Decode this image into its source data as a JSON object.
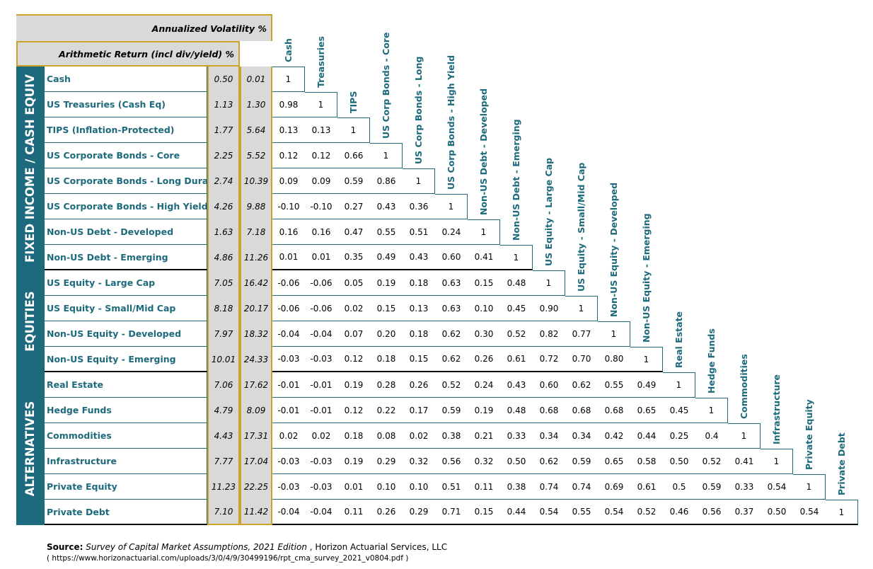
{
  "header": {
    "volatility_label": "Annualized Volatility %",
    "return_label": "Arithmetic Return (incl div/yield) %"
  },
  "groups": [
    {
      "label": "FIXED INCOME / CASH EQUIV",
      "start": 0,
      "count": 8
    },
    {
      "label": "EQUITIES",
      "start": 8,
      "count": 4
    },
    {
      "label": "ALTERNATIVES",
      "start": 12,
      "count": 6
    }
  ],
  "column_labels": [
    "Cash",
    "Treasuries",
    "TIPS",
    "US Corp Bonds - Core",
    "US Corp Bonds - Long",
    "US Corp Bonds - High Yield",
    "Non-US Debt - Developed",
    "Non-US Debt - Emerging",
    "US Equity - Large Cap",
    "US Equity - Small/Mid Cap",
    "Non-US Equity - Developed",
    "Non-US Equity - Emerging",
    "Real Estate",
    "Hedge Funds",
    "Commodities",
    "Infrastructure",
    "Private Equity",
    "Private Debt"
  ],
  "rows": [
    {
      "name": "Cash",
      "return": "0.50",
      "volatility": "0.01",
      "corr": [
        "1"
      ]
    },
    {
      "name": "US Treasuries (Cash Eq)",
      "return": "1.13",
      "volatility": "1.30",
      "corr": [
        "0.98",
        "1"
      ]
    },
    {
      "name": "TIPS (Inflation-Protected)",
      "return": "1.77",
      "volatility": "5.64",
      "corr": [
        "0.13",
        "0.13",
        "1"
      ]
    },
    {
      "name": "US Corporate Bonds - Core",
      "return": "2.25",
      "volatility": "5.52",
      "corr": [
        "0.12",
        "0.12",
        "0.66",
        "1"
      ]
    },
    {
      "name": "US Corporate Bonds - Long Duration",
      "return": "2.74",
      "volatility": "10.39",
      "corr": [
        "0.09",
        "0.09",
        "0.59",
        "0.86",
        "1"
      ]
    },
    {
      "name": "US Corporate Bonds - High Yield",
      "return": "4.26",
      "volatility": "9.88",
      "corr": [
        "-0.10",
        "-0.10",
        "0.27",
        "0.43",
        "0.36",
        "1"
      ]
    },
    {
      "name": "Non-US Debt - Developed",
      "return": "1.63",
      "volatility": "7.18",
      "corr": [
        "0.16",
        "0.16",
        "0.47",
        "0.55",
        "0.51",
        "0.24",
        "1"
      ]
    },
    {
      "name": "Non-US Debt - Emerging",
      "return": "4.86",
      "volatility": "11.26",
      "corr": [
        "0.01",
        "0.01",
        "0.35",
        "0.49",
        "0.43",
        "0.60",
        "0.41",
        "1"
      ]
    },
    {
      "name": "US Equity - Large Cap",
      "return": "7.05",
      "volatility": "16.42",
      "corr": [
        "-0.06",
        "-0.06",
        "0.05",
        "0.19",
        "0.18",
        "0.63",
        "0.15",
        "0.48",
        "1"
      ]
    },
    {
      "name": "US Equity - Small/Mid Cap",
      "return": "8.18",
      "volatility": "20.17",
      "corr": [
        "-0.06",
        "-0.06",
        "0.02",
        "0.15",
        "0.13",
        "0.63",
        "0.10",
        "0.45",
        "0.90",
        "1"
      ]
    },
    {
      "name": "Non-US Equity - Developed",
      "return": "7.97",
      "volatility": "18.32",
      "corr": [
        "-0.04",
        "-0.04",
        "0.07",
        "0.20",
        "0.18",
        "0.62",
        "0.30",
        "0.52",
        "0.82",
        "0.77",
        "1"
      ]
    },
    {
      "name": "Non-US Equity - Emerging",
      "return": "10.01",
      "volatility": "24.33",
      "corr": [
        "-0.03",
        "-0.03",
        "0.12",
        "0.18",
        "0.15",
        "0.62",
        "0.26",
        "0.61",
        "0.72",
        "0.70",
        "0.80",
        "1"
      ]
    },
    {
      "name": "Real Estate",
      "return": "7.06",
      "volatility": "17.62",
      "corr": [
        "-0.01",
        "-0.01",
        "0.19",
        "0.28",
        "0.26",
        "0.52",
        "0.24",
        "0.43",
        "0.60",
        "0.62",
        "0.55",
        "0.49",
        "1"
      ]
    },
    {
      "name": "Hedge Funds",
      "return": "4.79",
      "volatility": "8.09",
      "corr": [
        "-0.01",
        "-0.01",
        "0.12",
        "0.22",
        "0.17",
        "0.59",
        "0.19",
        "0.48",
        "0.68",
        "0.68",
        "0.68",
        "0.65",
        "0.45",
        "1"
      ]
    },
    {
      "name": "Commodities",
      "return": "4.43",
      "volatility": "17.31",
      "corr": [
        "0.02",
        "0.02",
        "0.18",
        "0.08",
        "0.02",
        "0.38",
        "0.21",
        "0.33",
        "0.34",
        "0.34",
        "0.42",
        "0.44",
        "0.25",
        "0.4",
        "1"
      ]
    },
    {
      "name": "Infrastructure",
      "return": "7.77",
      "volatility": "17.04",
      "corr": [
        "-0.03",
        "-0.03",
        "0.19",
        "0.29",
        "0.32",
        "0.56",
        "0.32",
        "0.50",
        "0.62",
        "0.59",
        "0.65",
        "0.58",
        "0.50",
        "0.52",
        "0.41",
        "1"
      ]
    },
    {
      "name": "Private Equity",
      "return": "11.23",
      "volatility": "22.25",
      "corr": [
        "-0.03",
        "-0.03",
        "0.01",
        "0.10",
        "0.10",
        "0.51",
        "0.11",
        "0.38",
        "0.74",
        "0.74",
        "0.69",
        "0.61",
        "0.5",
        "0.59",
        "0.33",
        "0.54",
        "1"
      ]
    },
    {
      "name": "Private Debt",
      "return": "7.10",
      "volatility": "11.42",
      "corr": [
        "-0.04",
        "-0.04",
        "0.11",
        "0.26",
        "0.29",
        "0.71",
        "0.15",
        "0.44",
        "0.54",
        "0.55",
        "0.54",
        "0.52",
        "0.46",
        "0.56",
        "0.37",
        "0.50",
        "0.54",
        "1"
      ]
    }
  ],
  "source": {
    "prefix": "Source:",
    "title": "Survey of Capital Market Assumptions, 2021 Edition",
    "publisher": " , Horizon Actuarial Services, LLC",
    "url": "( https://www.horizonactuarial.com/uploads/3/0/4/9/30499196/rpt_cma_survey_2021_v0804.pdf )"
  },
  "colors": {
    "teal": "#1d6a7c",
    "grey_fill": "#d9d9d9",
    "gold_border": "#c9a227",
    "cell_border": "#1d6a7c"
  }
}
